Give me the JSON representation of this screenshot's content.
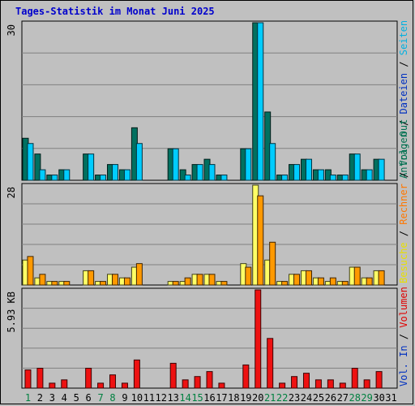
{
  "chart_data": {
    "type": "bar",
    "title": "Tages-Statistik im Monat Juni 2025",
    "days": [
      "1",
      "2",
      "3",
      "4",
      "5",
      "6",
      "7",
      "8",
      "9",
      "10",
      "11",
      "12",
      "13",
      "14",
      "15",
      "16",
      "17",
      "18",
      "19",
      "20",
      "21",
      "22",
      "23",
      "24",
      "25",
      "26",
      "27",
      "28",
      "29",
      "30",
      "31"
    ],
    "weekend_days": [
      "1",
      "7",
      "8",
      "14",
      "15",
      "21",
      "22",
      "28",
      "29"
    ],
    "panels": [
      {
        "name": "top",
        "ytick_label": "30",
        "ymax": 30,
        "legend": [
          "Anfragen",
          "/",
          "Dateien",
          "/",
          "Seiten"
        ],
        "legend_colors": [
          "#007050",
          "#000000",
          "#0030c0",
          "#000000",
          "#00b0e0"
        ],
        "series": [
          {
            "name": "Anfragen",
            "color": "#007060",
            "values": [
              8,
              5,
              1,
              2,
              0,
              5,
              1,
              3,
              2,
              10,
              0,
              0,
              6,
              2,
              3,
              4,
              1,
              0,
              6,
              30,
              13,
              1,
              3,
              4,
              2,
              2,
              1,
              5,
              2,
              4,
              0
            ]
          },
          {
            "name": "Seiten",
            "color": "#00ccff",
            "values": [
              7,
              2,
              1,
              2,
              0,
              5,
              1,
              3,
              2,
              7,
              0,
              0,
              6,
              1,
              3,
              3,
              1,
              0,
              6,
              30,
              7,
              1,
              3,
              4,
              2,
              1,
              1,
              5,
              2,
              4,
              0
            ]
          }
        ]
      },
      {
        "name": "middle",
        "ytick_label": "28",
        "ymax": 28,
        "legend": [
          "Besuche",
          "/",
          "Rechner",
          "/",
          "Vol. Out"
        ],
        "legend_colors": [
          "#e8e000",
          "#000000",
          "#ff7700",
          "#000000",
          "#007050"
        ],
        "series": [
          {
            "name": "Besuche",
            "color": "#ffff66",
            "values": [
              7,
              2,
              1,
              1,
              0,
              4,
              1,
              3,
              2,
              5,
              0,
              0,
              1,
              1,
              3,
              3,
              1,
              0,
              6,
              28,
              7,
              1,
              3,
              4,
              2,
              1,
              1,
              5,
              2,
              4,
              0
            ]
          },
          {
            "name": "Rechner",
            "color": "#ff9900",
            "values": [
              8,
              3,
              1,
              1,
              0,
              4,
              1,
              3,
              2,
              6,
              0,
              0,
              1,
              2,
              3,
              3,
              1,
              0,
              5,
              25,
              12,
              1,
              3,
              4,
              2,
              2,
              1,
              5,
              2,
              4,
              0
            ]
          }
        ]
      },
      {
        "name": "bottom",
        "ytick_label": "5.93 KB",
        "ymax": 5.93,
        "legend": [
          "Vol. In",
          "/",
          "Volumen"
        ],
        "legend_colors": [
          "#0030c0",
          "#000000",
          "#e00000"
        ],
        "series": [
          {
            "name": "Volumen",
            "color": "#ee1111",
            "values": [
              1.1,
              1.2,
              0.3,
              0.5,
              0,
              1.2,
              0.3,
              0.8,
              0.3,
              1.7,
              0,
              0,
              1.5,
              0.5,
              0.7,
              1.0,
              0.3,
              0,
              1.4,
              5.93,
              3.0,
              0.3,
              0.7,
              0.9,
              0.5,
              0.5,
              0.3,
              1.2,
              0.5,
              1.0,
              0
            ]
          }
        ]
      }
    ]
  }
}
